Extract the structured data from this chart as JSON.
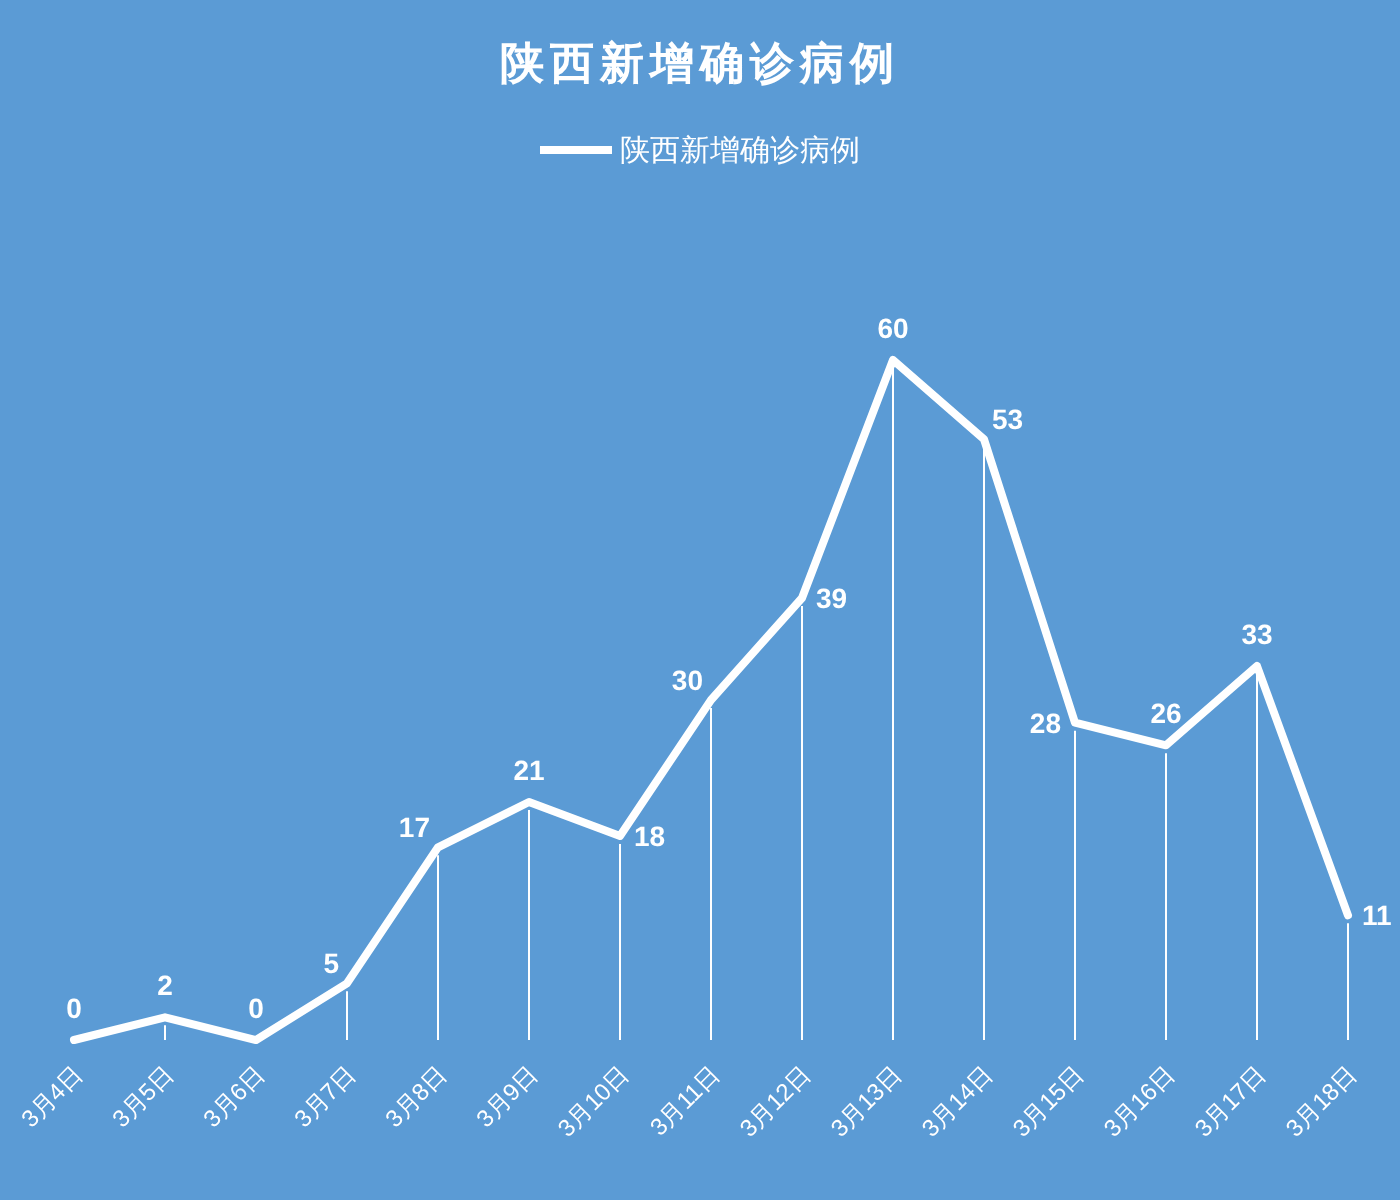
{
  "chart_data": {
    "type": "line",
    "title": "陕西新增确诊病例",
    "categories": [
      "3月4日",
      "3月5日",
      "3月6日",
      "3月7日",
      "3月8日",
      "3月9日",
      "3月10日",
      "3月11日",
      "3月12日",
      "3月13日",
      "3月14日",
      "3月15日",
      "3月16日",
      "3月17日",
      "3月18日"
    ],
    "series": [
      {
        "name": "陕西新增确诊病例",
        "color": "#ffffff",
        "values": [
          0,
          2,
          0,
          5,
          17,
          21,
          18,
          30,
          39,
          60,
          53,
          28,
          26,
          33,
          11
        ]
      }
    ],
    "data_labels": true,
    "legend": "top",
    "line_style": "solid"
  }
}
